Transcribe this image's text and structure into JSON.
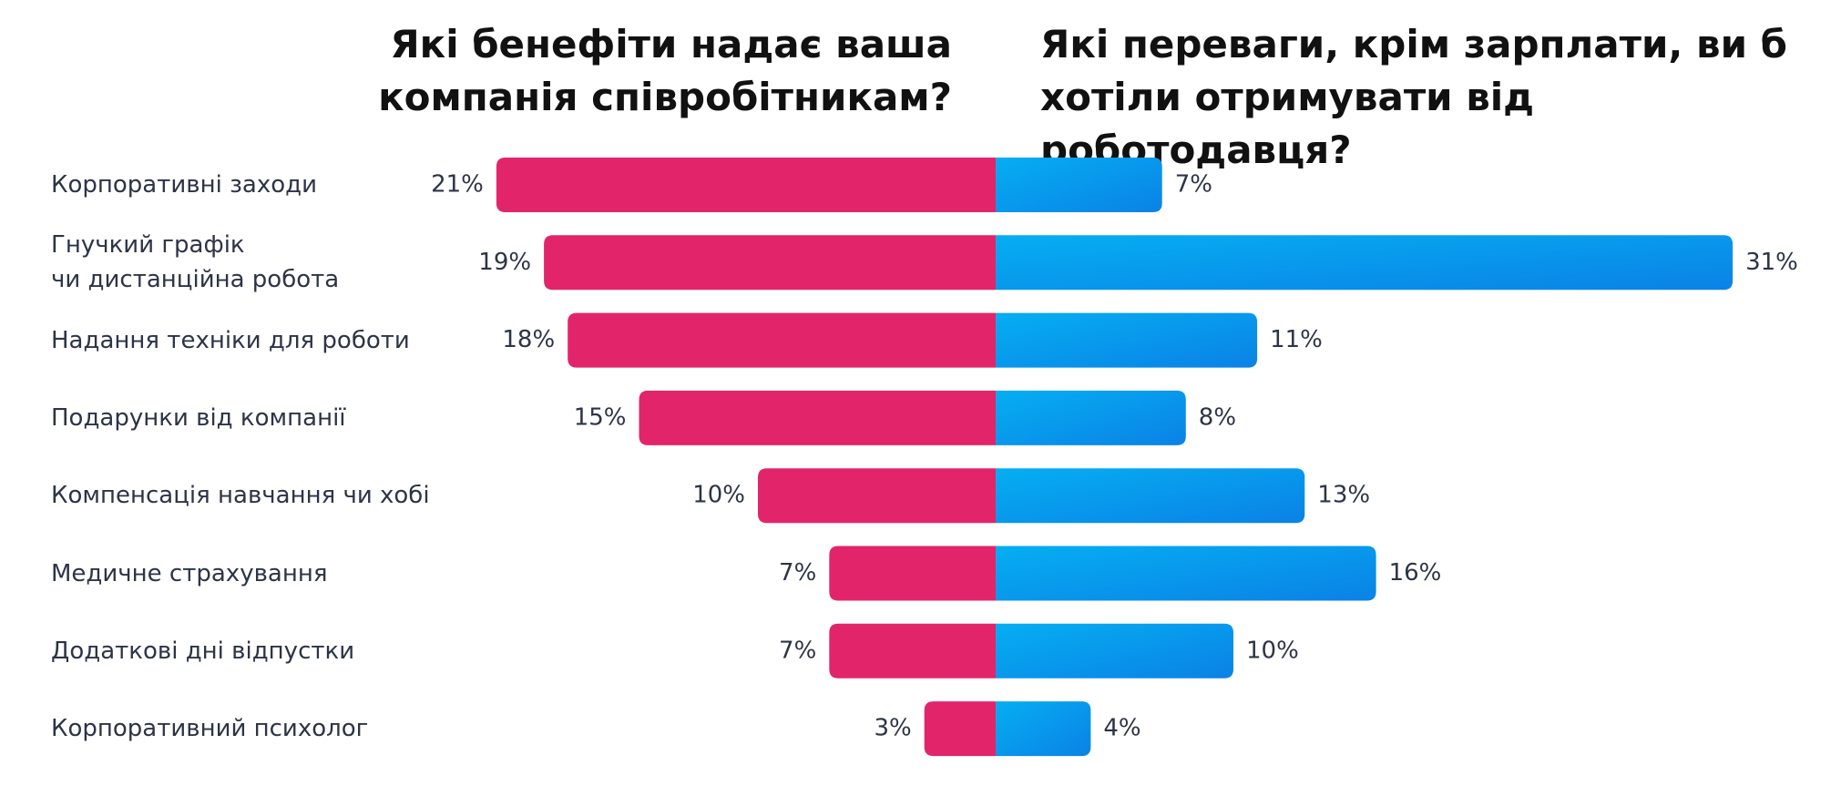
{
  "chart_data": {
    "type": "butterfly",
    "titles": [
      "Які бенефіти надає ваша компанія співробітникам?",
      "Які переваги, крім зарплати, ви б хотіли отримувати від роботодавця?"
    ],
    "categories": [
      "Корпоративні заходи",
      "Гнучкий графік\nчи дистанційна робота",
      "Надання техніки для роботи",
      "Подарунки від компанії",
      "Компенсація навчання чи хобі",
      "Медичне страхування",
      "Додаткові дні відпустки",
      "Корпоративний психолог"
    ],
    "series": [
      {
        "color": "#e2256a",
        "values": [
          21,
          19,
          18,
          15,
          10,
          7,
          7,
          3
        ],
        "value_labels": [
          "21%",
          "19%",
          "18%",
          "15%",
          "10%",
          "7%",
          "7%",
          "3%"
        ]
      },
      {
        "color": "#0898ee",
        "values": [
          7,
          31,
          11,
          8,
          13,
          16,
          10,
          4
        ],
        "value_labels": [
          "7%",
          "31%",
          "11%",
          "8%",
          "13%",
          "16%",
          "10%",
          "4%"
        ]
      }
    ]
  }
}
